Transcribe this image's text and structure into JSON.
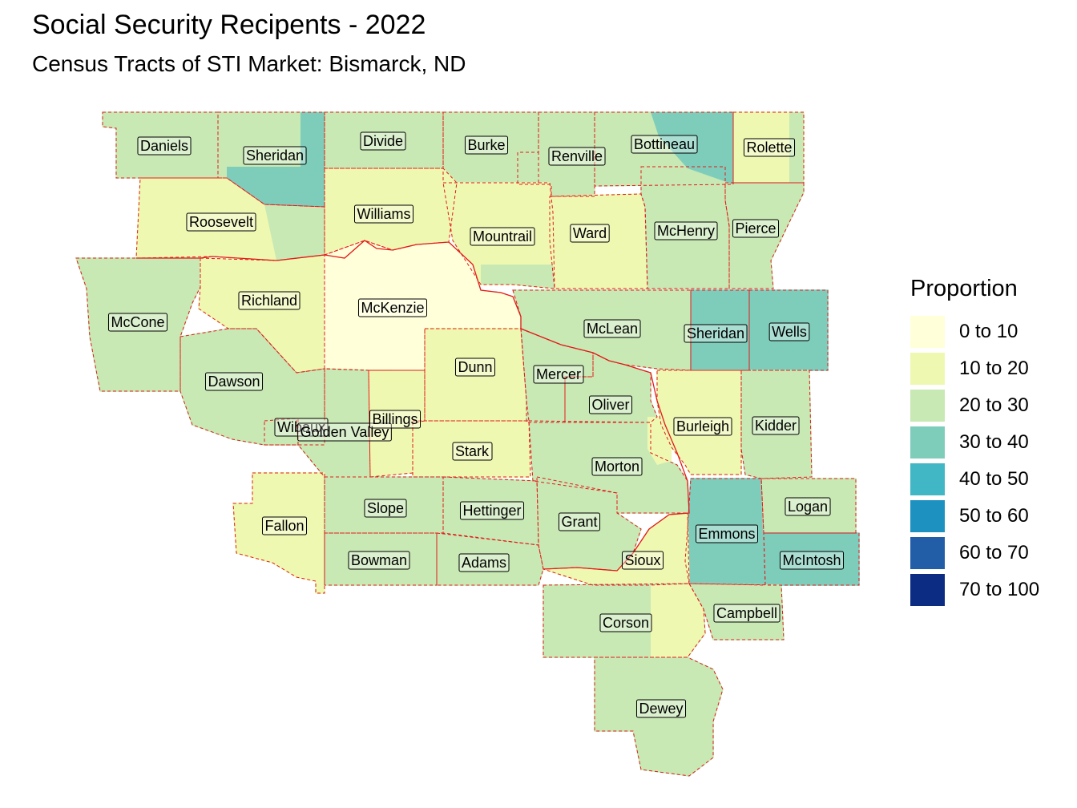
{
  "title": "Social Security Recipents - 2022",
  "subtitle": "Census Tracts of STI Market: Bismarck, ND",
  "legend": {
    "title": "Proportion",
    "items": [
      {
        "label": "0 to 10",
        "color": "#FFFFD9"
      },
      {
        "label": "10 to 20",
        "color": "#EEF8B0"
      },
      {
        "label": "20 to 30",
        "color": "#C8E9B4"
      },
      {
        "label": "30 to 40",
        "color": "#7ECDBB"
      },
      {
        "label": "40 to 50",
        "color": "#41B6C4"
      },
      {
        "label": "50 to 60",
        "color": "#1D91C0"
      },
      {
        "label": "60 to 70",
        "color": "#225EA8"
      },
      {
        "label": "70 to 100",
        "color": "#0C2C84"
      }
    ]
  },
  "counties": [
    {
      "name": "Daniels",
      "class": "20 to 30"
    },
    {
      "name": "Sheridan",
      "class": "20 to 30"
    },
    {
      "name": "Divide",
      "class": "20 to 30"
    },
    {
      "name": "Burke",
      "class": "20 to 30"
    },
    {
      "name": "Renville",
      "class": "20 to 30"
    },
    {
      "name": "Bottineau",
      "class": "20 to 30"
    },
    {
      "name": "Rolette",
      "class": "10 to 20"
    },
    {
      "name": "Roosevelt",
      "class": "10 to 20"
    },
    {
      "name": "Williams",
      "class": "10 to 20"
    },
    {
      "name": "Mountrail",
      "class": "10 to 20"
    },
    {
      "name": "Ward",
      "class": "10 to 20"
    },
    {
      "name": "McHenry",
      "class": "20 to 30"
    },
    {
      "name": "Pierce",
      "class": "20 to 30"
    },
    {
      "name": "McCone",
      "class": "20 to 30"
    },
    {
      "name": "Richland",
      "class": "10 to 20"
    },
    {
      "name": "McKenzie",
      "class": "0 to 10"
    },
    {
      "name": "McLean",
      "class": "20 to 30"
    },
    {
      "name": "Sheridan",
      "class": "30 to 40"
    },
    {
      "name": "Wells",
      "class": "30 to 40"
    },
    {
      "name": "Dawson",
      "class": "20 to 30"
    },
    {
      "name": "Dunn",
      "class": "10 to 20"
    },
    {
      "name": "Mercer",
      "class": "20 to 30"
    },
    {
      "name": "Oliver",
      "class": "20 to 30"
    },
    {
      "name": "Burleigh",
      "class": "10 to 20"
    },
    {
      "name": "Kidder",
      "class": "20 to 30"
    },
    {
      "name": "Wibaux",
      "class": "20 to 30"
    },
    {
      "name": "Golden Valley",
      "class": "20 to 30"
    },
    {
      "name": "Billings",
      "class": "10 to 20"
    },
    {
      "name": "Stark",
      "class": "10 to 20"
    },
    {
      "name": "Morton",
      "class": "20 to 30"
    },
    {
      "name": "Fallon",
      "class": "10 to 20"
    },
    {
      "name": "Slope",
      "class": "20 to 30"
    },
    {
      "name": "Hettinger",
      "class": "20 to 30"
    },
    {
      "name": "Grant",
      "class": "20 to 30"
    },
    {
      "name": "Emmons",
      "class": "30 to 40"
    },
    {
      "name": "Logan",
      "class": "20 to 30"
    },
    {
      "name": "Bowman",
      "class": "20 to 30"
    },
    {
      "name": "Adams",
      "class": "20 to 30"
    },
    {
      "name": "Sioux",
      "class": "10 to 20"
    },
    {
      "name": "McIntosh",
      "class": "30 to 40"
    },
    {
      "name": "Corson",
      "class": "20 to 30"
    },
    {
      "name": "Campbell",
      "class": "20 to 30"
    },
    {
      "name": "Dewey",
      "class": "20 to 30"
    }
  ]
}
